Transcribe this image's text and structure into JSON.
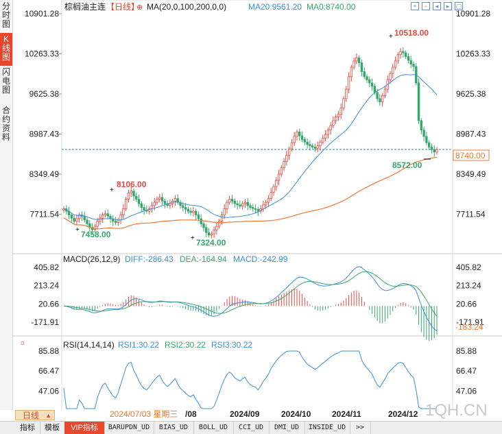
{
  "left_tabs": [
    {
      "label": "分时图",
      "active": false
    },
    {
      "label": "K线图",
      "active": true
    },
    {
      "label": "闪电图",
      "active": false
    },
    {
      "label": "合约资料",
      "active": false
    }
  ],
  "header": {
    "symbol": "棕榈油主连",
    "period": "【日线】",
    "ma_label": "MA(20,0,100,200,0,0)",
    "ma20": "MA20:9561.20",
    "ma0": "MA0:8740.00"
  },
  "toolbar_icons": [
    "zoom-in-icon",
    "zoom-out-icon",
    "move-left-icon",
    "move-right-icon",
    "window-icon"
  ],
  "price_axis": {
    "ticks": [
      "10901.28",
      "10263.33",
      "9625.38",
      "8987.43",
      "8349.49",
      "7711.54"
    ],
    "current_label": "8740.00"
  },
  "annotations": {
    "high": "10518.00",
    "low_a": "8106.00",
    "low_b": "7458.00",
    "low_c": "7324.00",
    "recent_low": "8572.00"
  },
  "macd": {
    "title": "MACD(26,12,9)",
    "diff": "DIFF:-286.43",
    "dea": "DEA:-164.94",
    "macd": "MACD:-242.99",
    "ticks": [
      "405.82",
      "213.24",
      "20.66",
      "-171.91"
    ],
    "current_label": "-183.24"
  },
  "rsi": {
    "title": "RSI(14,14,14)",
    "rsi1": "RSI1:30.22",
    "rsi2": "RSI2:30.22",
    "rsi3": "RSI3:30.22",
    "ticks": [
      "85.88",
      "66.47",
      "47.06"
    ]
  },
  "time_axis": {
    "labels": [
      "2024/07/03 星期三",
      "/08",
      "2024/09",
      "2024/10",
      "2024/11",
      "2024/12"
    ]
  },
  "period_select": "日线",
  "bottom_tabs": [
    {
      "label": "指标",
      "active": false
    },
    {
      "label": "模板",
      "active": false
    },
    {
      "label": "VIP指标",
      "active": true
    },
    {
      "label": "BARUPDN_UD",
      "active": false
    },
    {
      "label": "BIAS_UD",
      "active": false
    },
    {
      "label": "BOLL_UD",
      "active": false
    },
    {
      "label": "CCI_UD",
      "active": false
    },
    {
      "label": "DMI_UD",
      "active": false
    },
    {
      "label": "INSIDE_UD",
      "active": false
    },
    {
      "label": ">>",
      "active": false
    }
  ],
  "watermark": "1QH.CN",
  "colors": {
    "up": "#e8473e",
    "down": "#34a86a",
    "ma20": "#3a8fd8",
    "ma_long": "#f07830",
    "dea": "#34a86a",
    "rsi": "#3a8fd8"
  },
  "chart_data": {
    "type": "candlestick",
    "title": "棕榈油主连",
    "x_range": [
      "2024/06",
      "2024/12"
    ],
    "price_range": [
      7324,
      10901.28
    ],
    "high": 10518,
    "lows": [
      7458,
      7324,
      8106,
      8572
    ],
    "last_close": 8740,
    "ma20": 9561.2,
    "macd": {
      "diff": -286.43,
      "dea": -164.94,
      "macd": -242.99,
      "range": [
        -300,
        405.82
      ]
    },
    "rsi": {
      "rsi1": 30.22,
      "rsi2": 30.22,
      "rsi3": 30.22,
      "range": [
        20,
        100
      ]
    },
    "closes": [
      7800,
      7760,
      7700,
      7650,
      7600,
      7640,
      7700,
      7680,
      7620,
      7560,
      7500,
      7470,
      7520,
      7600,
      7650,
      7700,
      7720,
      7680,
      7640,
      7600,
      7580,
      7620,
      7700,
      7800,
      7950,
      8050,
      8080,
      8000,
      7950,
      7880,
      7820,
      7780,
      7760,
      7800,
      7850,
      7900,
      7950,
      7980,
      7920,
      7880,
      7850,
      7880,
      7920,
      7960,
      7900,
      7850,
      7820,
      7790,
      7760,
      7740,
      7760,
      7700,
      7640,
      7560,
      7500,
      7420,
      7380,
      7400,
      7460,
      7520,
      7600,
      7700,
      7800,
      7900,
      7950,
      7920,
      7880,
      7860,
      7840,
      7880,
      7900,
      7850,
      7820,
      7800,
      7790,
      7760,
      7800,
      7860,
      7900,
      7960,
      8060,
      8150,
      8250,
      8350,
      8450,
      8550,
      8650,
      8750,
      8850,
      8950,
      9020,
      8960,
      8900,
      8860,
      8820,
      8800,
      8780,
      8760,
      8800,
      8860,
      8920,
      8980,
      9050,
      9120,
      9200,
      9260,
      9300,
      9400,
      9550,
      9700,
      9900,
      10050,
      10150,
      10200,
      10120,
      9980,
      9900,
      9850,
      9800,
      9750,
      9650,
      9550,
      9500,
      9600,
      9700,
      9850,
      9950,
      10050,
      10150,
      10250,
      10300,
      10280,
      10220,
      10160,
      10100,
      10060,
      9800,
      9200,
      9050,
      8950,
      8850,
      8780,
      8740,
      8700,
      8740
    ]
  }
}
